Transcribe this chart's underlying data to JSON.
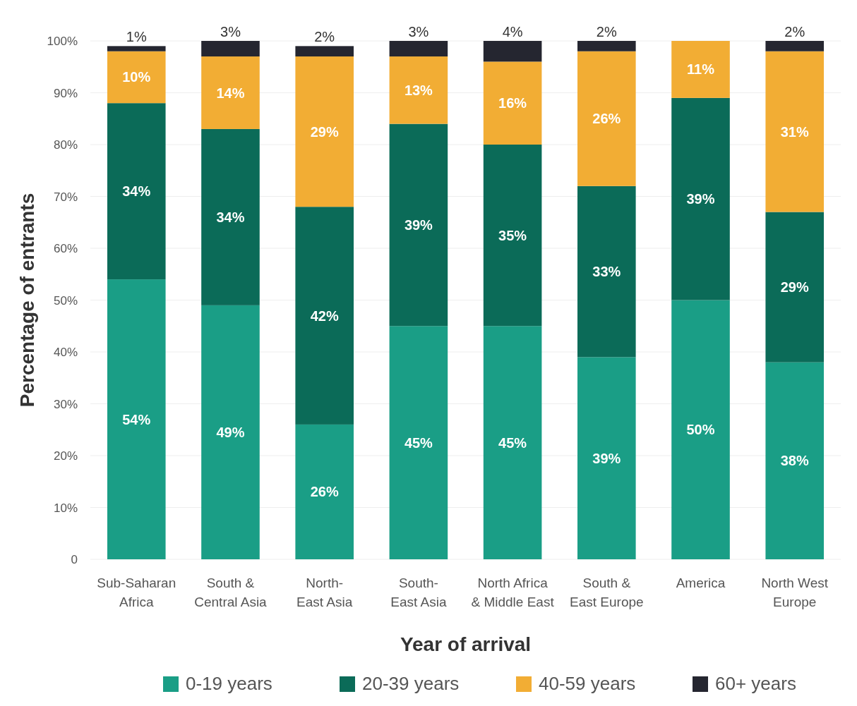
{
  "chart_data": {
    "type": "bar",
    "stacked": true,
    "xlabel": "Year of arrival",
    "ylabel": "Percentage of entrants",
    "categories": [
      "Sub-Saharan\nAfrica",
      "South &\nCentral Asia",
      "North-\nEast Asia",
      "South-\nEast Asia",
      "North Africa\n& Middle East",
      "South &\nEast Europe",
      "America",
      "North West\nEurope"
    ],
    "series": [
      {
        "name": "0-19 years",
        "color": "#1a9e86",
        "values": [
          54,
          49,
          26,
          45,
          45,
          39,
          50,
          38
        ],
        "value_labels": [
          "54%",
          "49%",
          "26%",
          "45%",
          "45%",
          "39%",
          "50%",
          "38%"
        ]
      },
      {
        "name": "20-39 years",
        "color": "#0b6b58",
        "values": [
          34,
          34,
          42,
          39,
          35,
          33,
          39,
          29
        ],
        "value_labels": [
          "34%",
          "34%",
          "42%",
          "39%",
          "35%",
          "33%",
          "39%",
          "29%"
        ]
      },
      {
        "name": "40-59 years",
        "color": "#f2ad34",
        "values": [
          10,
          14,
          29,
          13,
          16,
          26,
          11,
          31
        ],
        "value_labels": [
          "10%",
          "14%",
          "29%",
          "13%",
          "16%",
          "26%",
          "11%",
          "31%"
        ]
      },
      {
        "name": "60+ years",
        "color": "#252630",
        "values": [
          1,
          3,
          2,
          3,
          4,
          2,
          null,
          2
        ],
        "value_labels": [
          "1%",
          "3%",
          "2%",
          "3%",
          "4%",
          "2%",
          null,
          "2%"
        ]
      }
    ],
    "ylim": [
      0,
      100
    ],
    "yticks": [
      {
        "value": 0,
        "label": "0"
      },
      {
        "value": 10,
        "label": "10%"
      },
      {
        "value": 20,
        "label": "20%"
      },
      {
        "value": 30,
        "label": "30%"
      },
      {
        "value": 40,
        "label": "40%"
      },
      {
        "value": 50,
        "label": "50%"
      },
      {
        "value": 60,
        "label": "60%"
      },
      {
        "value": 70,
        "label": "70%"
      },
      {
        "value": 80,
        "label": "80%"
      },
      {
        "value": 90,
        "label": "90%"
      },
      {
        "value": 100,
        "label": "100%"
      }
    ],
    "grid": "y",
    "legend": "bottom"
  }
}
